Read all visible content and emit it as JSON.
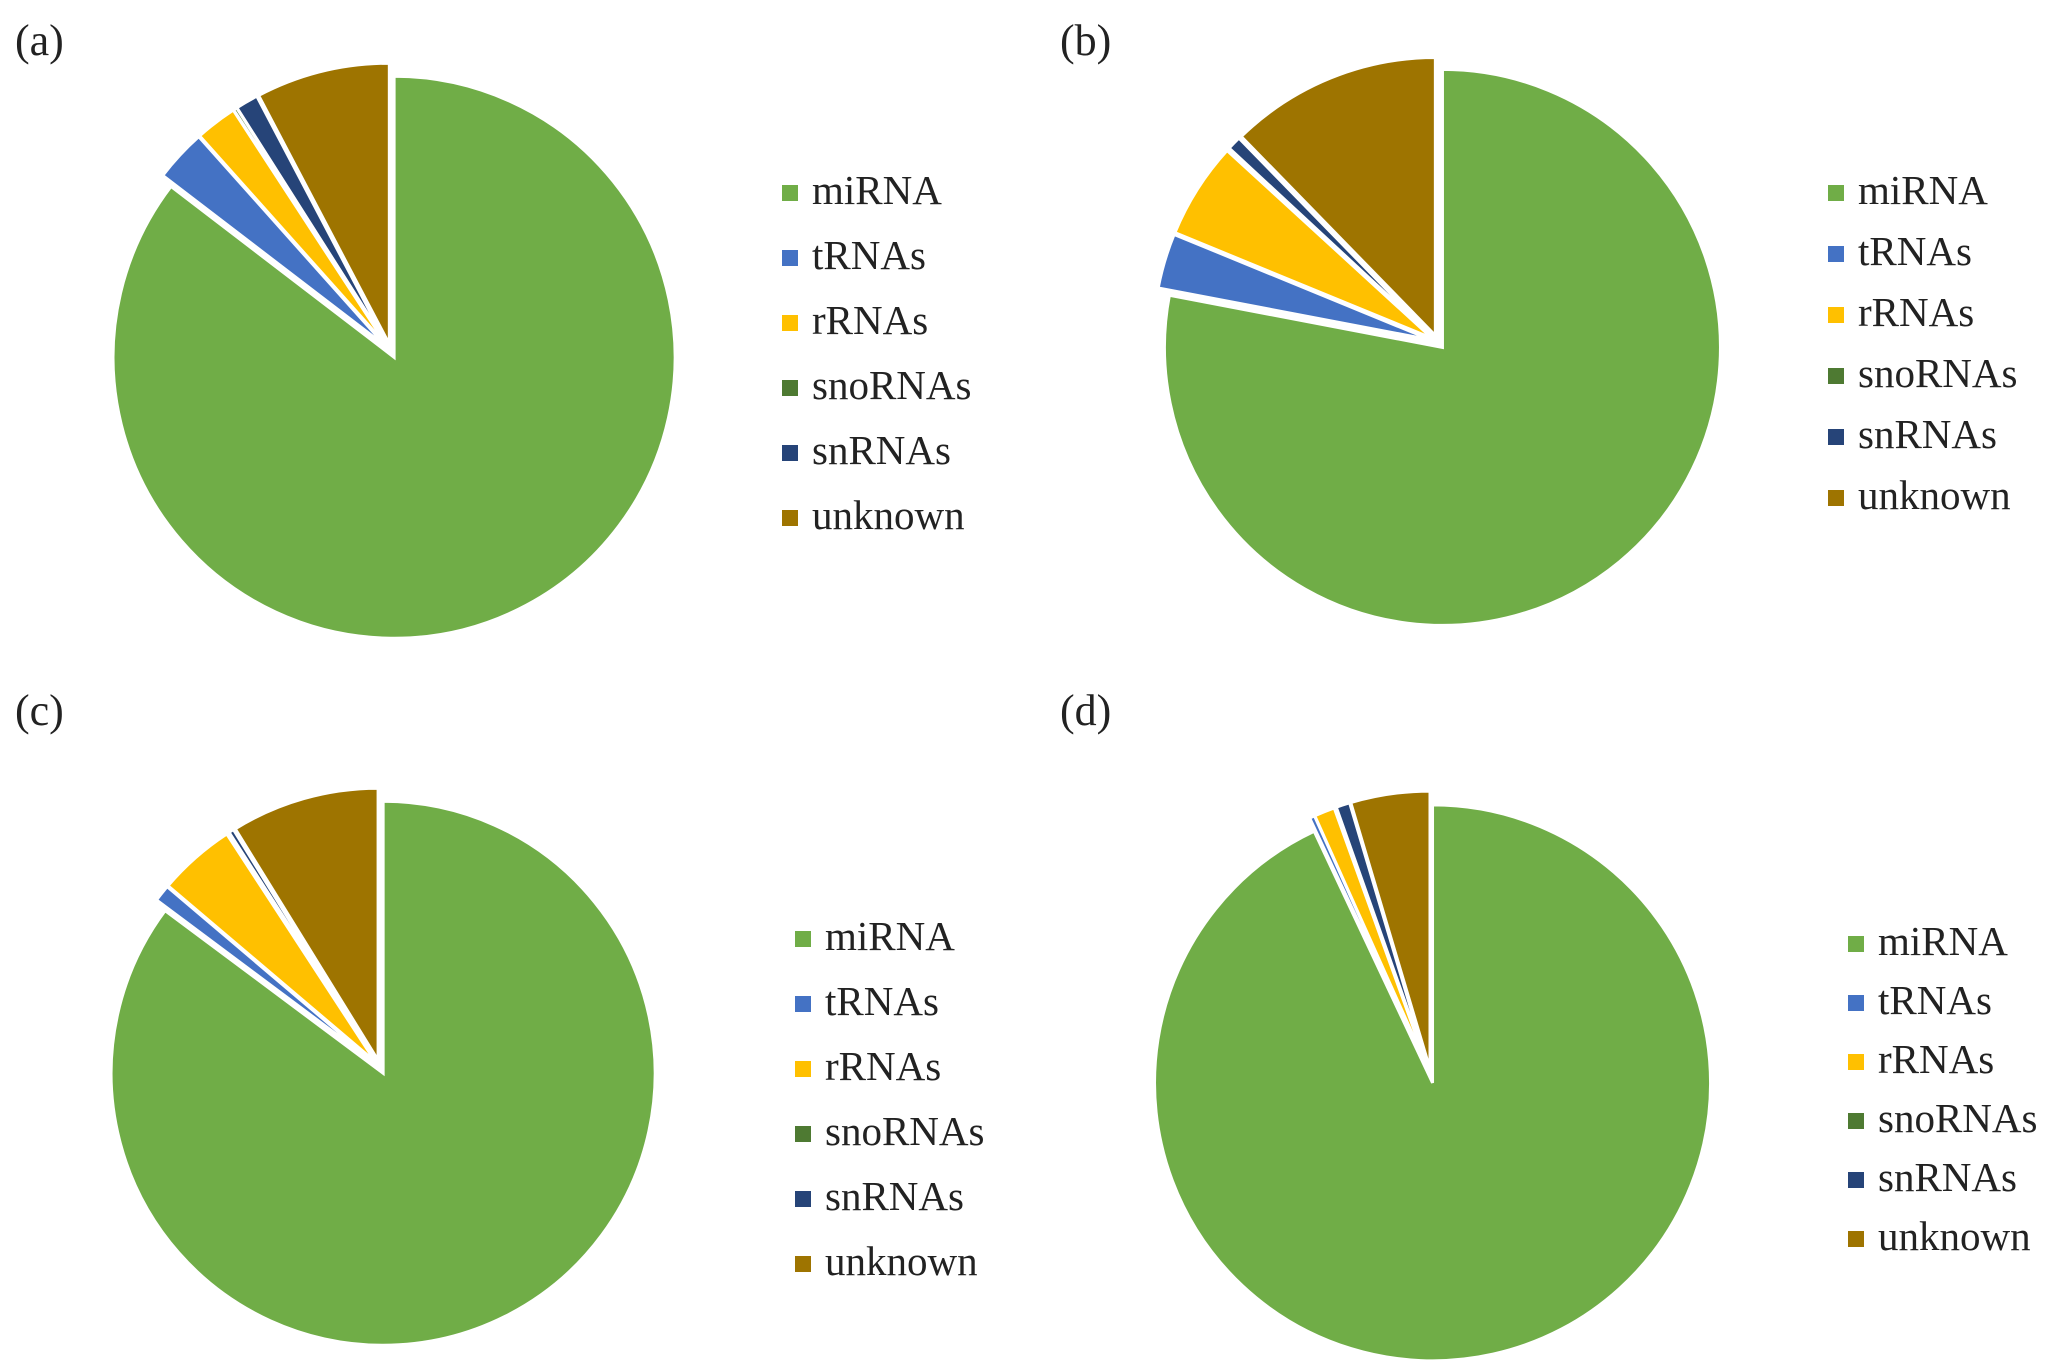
{
  "chart_data": [
    {
      "type": "pie",
      "panel_label": "(a)",
      "legend_position": "right",
      "categories": [
        "miRNA",
        "tRNAs",
        "rRNAs",
        "snoRNAs",
        "snRNAs",
        "unknown"
      ],
      "values": [
        85.4,
        3.0,
        2.4,
        0.2,
        1.3,
        7.7
      ]
    },
    {
      "type": "pie",
      "panel_label": "(b)",
      "legend_position": "right",
      "categories": [
        "miRNA",
        "tRNAs",
        "rRNAs",
        "snoRNAs",
        "snRNAs",
        "unknown"
      ],
      "values": [
        78.0,
        3.2,
        5.6,
        0.1,
        0.8,
        12.3
      ]
    },
    {
      "type": "pie",
      "panel_label": "(c)",
      "legend_position": "right",
      "categories": [
        "miRNA",
        "tRNAs",
        "rRNAs",
        "snoRNAs",
        "snRNAs",
        "unknown"
      ],
      "values": [
        85.2,
        1.0,
        4.6,
        0.1,
        0.3,
        8.8
      ]
    },
    {
      "type": "pie",
      "panel_label": "(d)",
      "legend_position": "right",
      "categories": [
        "miRNA",
        "tRNAs",
        "rRNAs",
        "snoRNAs",
        "snRNAs",
        "unknown"
      ],
      "values": [
        93.0,
        0.3,
        1.2,
        0.1,
        0.8,
        4.6
      ]
    }
  ],
  "colors": [
    "#70ad47",
    "#4472c4",
    "#ffc000",
    "#4e7a32",
    "#264478",
    "#9e7400"
  ]
}
